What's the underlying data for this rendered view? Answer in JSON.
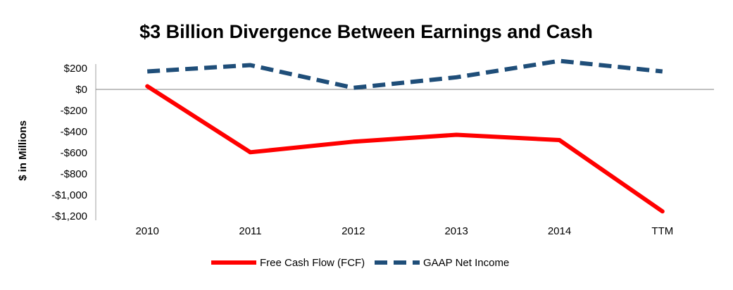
{
  "chart_data": {
    "type": "line",
    "title": "$3 Billion Divergence Between Earnings and Cash",
    "xlabel": "",
    "ylabel": "$ in Millions",
    "categories": [
      "2010",
      "2011",
      "2012",
      "2013",
      "2014",
      "TTM"
    ],
    "ylim": [
      -1200,
      200
    ],
    "yticks": [
      200,
      0,
      -200,
      -400,
      -600,
      -800,
      -1000,
      -1200
    ],
    "ytick_labels": [
      "$200",
      "$0",
      "-$200",
      "-$400",
      "-$600",
      "-$800",
      "-$1,000",
      "-$1,200"
    ],
    "grid": false,
    "legend_position": "bottom",
    "series": [
      {
        "name": "Free Cash Flow (FCF)",
        "values": [
          30,
          -595,
          -495,
          -430,
          -480,
          -1155
        ],
        "color": "#ff0000",
        "style": "solid"
      },
      {
        "name": "GAAP Net Income",
        "values": [
          170,
          230,
          15,
          115,
          270,
          170
        ],
        "color": "#1f4e79",
        "style": "dashed"
      }
    ]
  }
}
